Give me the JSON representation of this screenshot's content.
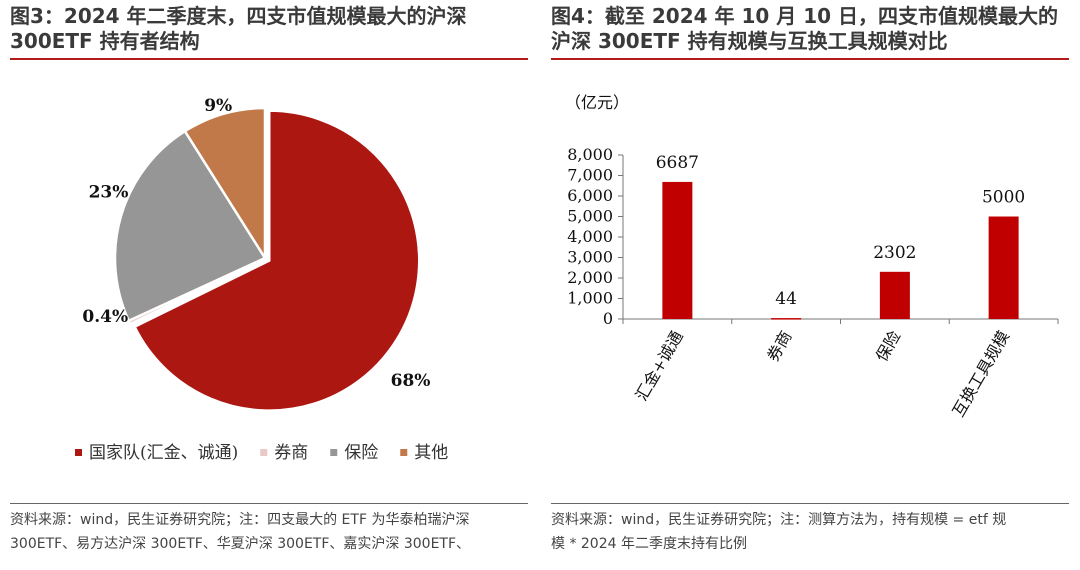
{
  "left_figure": {
    "title_line1": "图3：2024 年二季度末，四支市值规模最大的沪深",
    "title_line2": "300ETF 持有者结构",
    "footnote_line1": "资料来源：wind，民生证券研究院；注：四支最大的 ETF 为华泰柏瑞沪深",
    "footnote_line2": "300ETF、易方达沪深 300ETF、华夏沪深 300ETF、嘉实沪深 300ETF、"
  },
  "right_figure": {
    "title_line1": "图4：截至 2024 年 10 月 10 日，四支市值规模最大的",
    "title_line2": "沪深 300ETF 持有规模与互换工具规模对比",
    "footnote_line1": "资料来源：wind，民生证券研究院；注：测算方法为，持有规模 = etf 规",
    "footnote_line2": "模 * 2024 年二季度末持有比例"
  },
  "chart_data": [
    {
      "type": "pie",
      "title": "",
      "slices": [
        {
          "name": "国家队(汇金、诚通)",
          "value": 68,
          "label": "68%",
          "color": "#ad1712",
          "label_angle": 130
        },
        {
          "name": "券商",
          "value": 0.4,
          "label": "0.4%",
          "color": "#e8c9c6",
          "label_angle": 250
        },
        {
          "name": "保险",
          "value": 23,
          "label": "23%",
          "color": "#969696",
          "label_angle": 293
        },
        {
          "name": "其他",
          "value": 9,
          "label": "9%",
          "color": "#c1794a",
          "label_angle": 343
        }
      ],
      "legend": [
        "国家队(汇金、诚通)",
        "券商",
        "保险",
        "其他"
      ],
      "legend_position": "bottom",
      "legend_separators": [
        "、"
      ]
    },
    {
      "type": "bar",
      "title": "",
      "unit_label": "（亿元）",
      "categories": [
        "汇金+诚通",
        "券商",
        "保险",
        "互换工具规模"
      ],
      "values": [
        6687,
        44,
        2302,
        5000
      ],
      "value_labels": [
        "6687",
        "44",
        "2302",
        "5000"
      ],
      "bar_color": "#c00000",
      "ylim": [
        0,
        8000
      ],
      "yticks": [
        0,
        1000,
        2000,
        3000,
        4000,
        5000,
        6000,
        7000,
        8000
      ],
      "ytick_labels": [
        "0",
        "1,000",
        "2,000",
        "3,000",
        "4,000",
        "5,000",
        "6,000",
        "7,000",
        "8,000"
      ],
      "grid": false,
      "xlabel": "",
      "ylabel": ""
    }
  ]
}
